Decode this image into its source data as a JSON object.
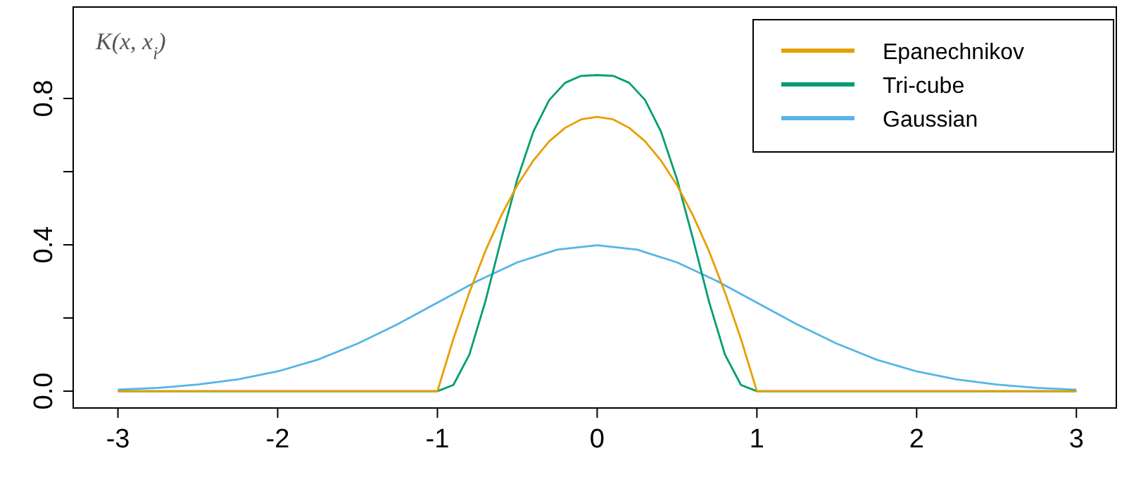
{
  "chart_data": {
    "type": "line",
    "xlim": [
      -3.28,
      3.25
    ],
    "ylim": [
      -0.046,
      1.05
    ],
    "xticks": [
      -3,
      -2,
      -1,
      0,
      1,
      2,
      3
    ],
    "yticks": [
      {
        "value": 0,
        "label": "0.0"
      },
      {
        "value": 0.2,
        "label": null
      },
      {
        "value": 0.4,
        "label": "0.4"
      },
      {
        "value": 0.6,
        "label": null
      },
      {
        "value": 0.8,
        "label": "0.8"
      }
    ],
    "grid": false,
    "legend": "top right",
    "marker": "none",
    "line_style": "solid",
    "annotations": [
      "K(x, x$_{i}$)"
    ],
    "series": [
      {
        "name": "Epanechnikov",
        "color": "#e69f00",
        "x": [
          -3,
          -1,
          -0.9,
          -0.8,
          -0.7,
          -0.6,
          -0.5,
          -0.4,
          -0.3,
          -0.2,
          -0.1,
          0,
          0.1,
          0.2,
          0.3,
          0.4,
          0.5,
          0.6,
          0.7,
          0.8,
          0.9,
          1,
          3
        ],
        "values": [
          0,
          0,
          0.143,
          0.27,
          0.383,
          0.48,
          0.563,
          0.63,
          0.683,
          0.72,
          0.743,
          0.75,
          0.743,
          0.72,
          0.683,
          0.63,
          0.563,
          0.48,
          0.383,
          0.27,
          0.143,
          0,
          0
        ]
      },
      {
        "name": "Tri-cube",
        "color": "#009e73",
        "x": [
          -3,
          -1,
          -0.9,
          -0.8,
          -0.7,
          -0.6,
          -0.5,
          -0.4,
          -0.3,
          -0.2,
          -0.1,
          0,
          0.1,
          0.2,
          0.3,
          0.4,
          0.5,
          0.6,
          0.7,
          0.8,
          0.9,
          1,
          3
        ],
        "values": [
          0,
          0,
          0.017,
          0.1,
          0.245,
          0.416,
          0.579,
          0.709,
          0.796,
          0.843,
          0.862,
          0.864,
          0.862,
          0.843,
          0.796,
          0.709,
          0.579,
          0.416,
          0.245,
          0.1,
          0.017,
          0,
          0
        ]
      },
      {
        "name": "Gaussian",
        "color": "#56b4e9",
        "x": [
          -3,
          -2.75,
          -2.5,
          -2.25,
          -2,
          -1.75,
          -1.5,
          -1.25,
          -1,
          -0.75,
          -0.5,
          -0.25,
          0,
          0.25,
          0.5,
          0.75,
          1,
          1.25,
          1.5,
          1.75,
          2,
          2.25,
          2.5,
          2.75,
          3
        ],
        "values": [
          0.004,
          0.009,
          0.018,
          0.032,
          0.054,
          0.086,
          0.13,
          0.183,
          0.242,
          0.301,
          0.352,
          0.387,
          0.399,
          0.387,
          0.352,
          0.301,
          0.242,
          0.183,
          0.13,
          0.086,
          0.054,
          0.032,
          0.018,
          0.009,
          0.004
        ]
      }
    ]
  }
}
